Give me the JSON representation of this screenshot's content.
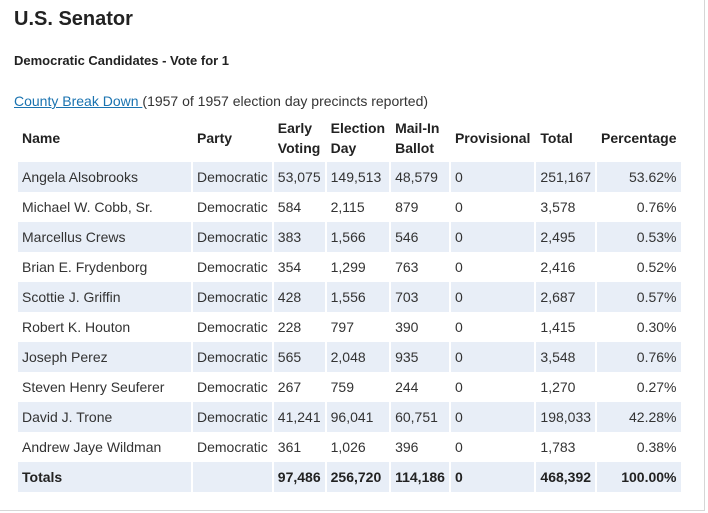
{
  "title": "U.S. Senator",
  "subtitle": "Democratic Candidates - Vote for 1",
  "report": {
    "link_text": "County Break Down ",
    "status_text": "(1957 of 1957 election day precincts reported)"
  },
  "table": {
    "headers": {
      "name": "Name",
      "party": "Party",
      "early_1": "Early",
      "early_2": "Voting",
      "election_1": "Election",
      "election_2": "Day",
      "mail_1": "Mail-In",
      "mail_2": "Ballot",
      "provisional": "Provisional",
      "total": "Total",
      "percentage": "Percentage"
    },
    "rows": [
      {
        "name": "Angela Alsobrooks",
        "party": "Democratic",
        "early": "53,075",
        "election": "149,513",
        "mail": "48,579",
        "provisional": "0",
        "total": "251,167",
        "percentage": "53.62%"
      },
      {
        "name": "Michael W. Cobb, Sr.",
        "party": "Democratic",
        "early": "584",
        "election": "2,115",
        "mail": "879",
        "provisional": "0",
        "total": "3,578",
        "percentage": "0.76%"
      },
      {
        "name": "Marcellus Crews",
        "party": "Democratic",
        "early": "383",
        "election": "1,566",
        "mail": "546",
        "provisional": "0",
        "total": "2,495",
        "percentage": "0.53%"
      },
      {
        "name": "Brian E. Frydenborg",
        "party": "Democratic",
        "early": "354",
        "election": "1,299",
        "mail": "763",
        "provisional": "0",
        "total": "2,416",
        "percentage": "0.52%"
      },
      {
        "name": "Scottie J. Griffin",
        "party": "Democratic",
        "early": "428",
        "election": "1,556",
        "mail": "703",
        "provisional": "0",
        "total": "2,687",
        "percentage": "0.57%"
      },
      {
        "name": "Robert K. Houton",
        "party": "Democratic",
        "early": "228",
        "election": "797",
        "mail": "390",
        "provisional": "0",
        "total": "1,415",
        "percentage": "0.30%"
      },
      {
        "name": "Joseph Perez",
        "party": "Democratic",
        "early": "565",
        "election": "2,048",
        "mail": "935",
        "provisional": "0",
        "total": "3,548",
        "percentage": "0.76%"
      },
      {
        "name": "Steven Henry Seuferer",
        "party": "Democratic",
        "early": "267",
        "election": "759",
        "mail": "244",
        "provisional": "0",
        "total": "1,270",
        "percentage": "0.27%"
      },
      {
        "name": "David J. Trone",
        "party": "Democratic",
        "early": "41,241",
        "election": "96,041",
        "mail": "60,751",
        "provisional": "0",
        "total": "198,033",
        "percentage": "42.28%"
      },
      {
        "name": "Andrew Jaye Wildman",
        "party": "Democratic",
        "early": "361",
        "election": "1,026",
        "mail": "396",
        "provisional": "0",
        "total": "1,783",
        "percentage": "0.38%"
      }
    ],
    "totals": {
      "label": "Totals",
      "party": "",
      "early": "97,486",
      "election": "256,720",
      "mail": "114,186",
      "provisional": "0",
      "total": "468,392",
      "percentage": "100.00%"
    }
  },
  "colors": {
    "row_shade": "#e8eef7",
    "link": "#1a73b0"
  }
}
